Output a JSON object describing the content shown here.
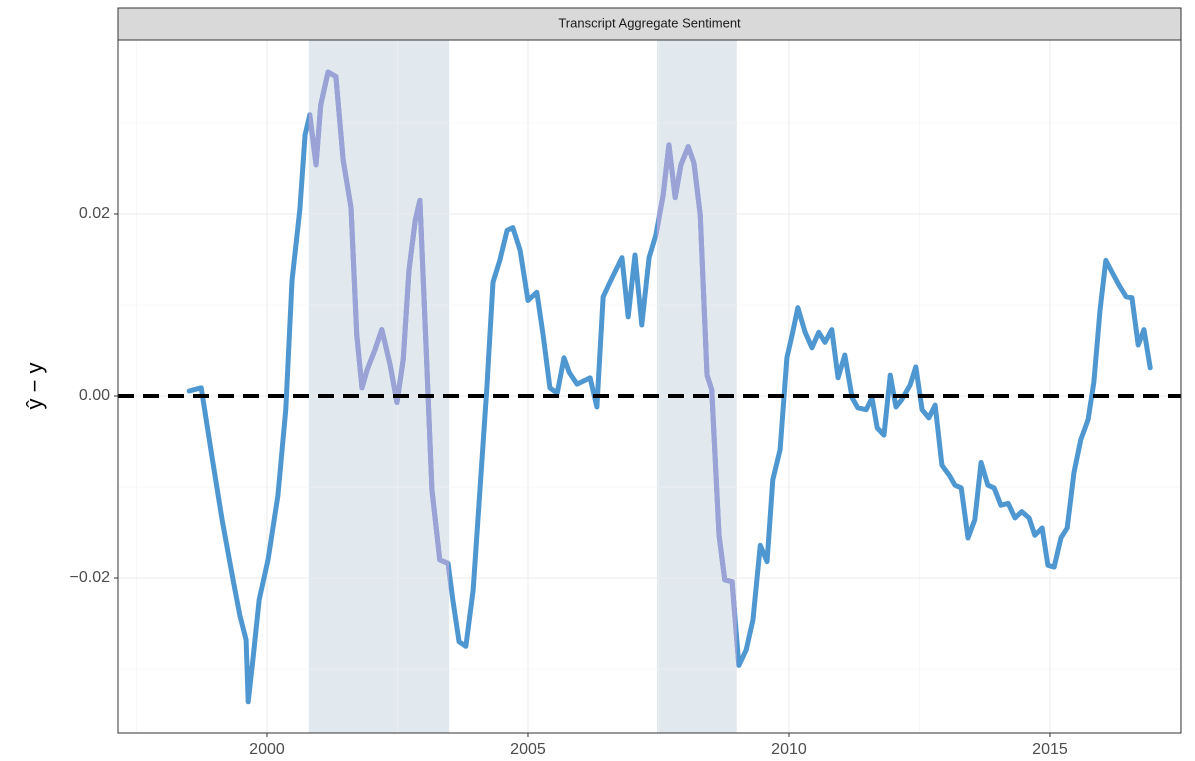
{
  "chart_data": {
    "type": "line",
    "title": "Transcript Aggregate Sentiment",
    "ylabel": "ŷ − y",
    "color": "#4f97d1",
    "shade_line_color": "#9ba3d6",
    "shade_color": "#e1e9ef",
    "shades": [
      [
        2000.8,
        2003.49
      ],
      [
        2007.47,
        2009.0
      ]
    ],
    "hline": 0,
    "grid": true,
    "xlim": [
      1997.146,
      2017.51
    ],
    "ylim": [
      -0.03703,
      0.03912
    ],
    "xticks": [
      2000,
      2005,
      2010,
      2015
    ],
    "yticks": [
      {
        "value": -0.02,
        "label": "−0.02"
      },
      {
        "value": 0,
        "label": "0.00"
      },
      {
        "value": 0.02,
        "label": "0.02"
      }
    ],
    "x": [
      1998.51,
      1998.74,
      1998.95,
      1999.14,
      1999.35,
      1999.48,
      1999.6,
      1999.64,
      1999.73,
      1999.85,
      2000.02,
      2000.21,
      2000.36,
      2000.48,
      2000.63,
      2000.73,
      2000.82,
      2000.94,
      2001.03,
      2001.17,
      2001.32,
      2001.46,
      2001.61,
      2001.72,
      2001.82,
      2001.92,
      2002.07,
      2002.2,
      2002.36,
      2002.49,
      2002.61,
      2002.72,
      2002.84,
      2002.93,
      2003.05,
      2003.16,
      2003.31,
      2003.47,
      2003.56,
      2003.68,
      2003.81,
      2003.95,
      2004.08,
      2004.21,
      2004.33,
      2004.46,
      2004.6,
      2004.71,
      2004.85,
      2005.0,
      2005.17,
      2005.29,
      2005.42,
      2005.56,
      2005.69,
      2005.79,
      2005.94,
      2006.19,
      2006.32,
      2006.44,
      2006.57,
      2006.8,
      2006.92,
      2007.05,
      2007.18,
      2007.32,
      2007.45,
      2007.59,
      2007.7,
      2007.82,
      2007.93,
      2008.07,
      2008.18,
      2008.3,
      2008.43,
      2008.52,
      2008.66,
      2008.77,
      2008.91,
      2009.04,
      2009.18,
      2009.31,
      2009.45,
      2009.58,
      2009.69,
      2009.83,
      2009.96,
      2010.06,
      2010.17,
      2010.31,
      2010.44,
      2010.57,
      2010.69,
      2010.82,
      2010.94,
      2011.07,
      2011.21,
      2011.32,
      2011.48,
      2011.59,
      2011.69,
      2011.82,
      2011.94,
      2012.05,
      2012.16,
      2012.32,
      2012.43,
      2012.55,
      2012.68,
      2012.8,
      2012.93,
      2013.07,
      2013.18,
      2013.3,
      2013.43,
      2013.56,
      2013.68,
      2013.81,
      2013.93,
      2014.06,
      2014.2,
      2014.33,
      2014.46,
      2014.6,
      2014.71,
      2014.85,
      2014.96,
      2015.08,
      2015.21,
      2015.33,
      2015.46,
      2015.59,
      2015.73,
      2015.84,
      2015.96,
      2016.07,
      2016.19,
      2016.32,
      2016.46,
      2016.57,
      2016.69,
      2016.8,
      2016.92
    ],
    "values": [
      0.00055,
      0.0009,
      -0.0068,
      -0.0136,
      -0.0202,
      -0.0241,
      -0.0268,
      -0.0336,
      -0.029,
      -0.0224,
      -0.018,
      -0.0109,
      -0.0015,
      0.0127,
      0.0205,
      0.0287,
      0.0309,
      0.0254,
      0.032,
      0.0356,
      0.0351,
      0.0259,
      0.0207,
      0.0067,
      0.0009,
      0.0029,
      0.0051,
      0.0073,
      0.0034,
      -0.0007,
      0.004,
      0.0138,
      0.0193,
      0.0215,
      0.0051,
      -0.0103,
      -0.018,
      -0.0184,
      -0.0224,
      -0.027,
      -0.0275,
      -0.0213,
      -0.0103,
      0.0007,
      0.0125,
      0.0149,
      0.0182,
      0.0185,
      0.016,
      0.0105,
      0.0114,
      0.0067,
      0.0009,
      0.0003,
      0.0042,
      0.0026,
      0.0013,
      0.002,
      -0.0012,
      0.0109,
      0.0125,
      0.0152,
      0.0087,
      0.0155,
      0.0078,
      0.0152,
      0.0177,
      0.0221,
      0.0276,
      0.0218,
      0.0254,
      0.0274,
      0.0256,
      0.0199,
      0.0023,
      0.0007,
      -0.0153,
      -0.0202,
      -0.0204,
      -0.0296,
      -0.0279,
      -0.0246,
      -0.0164,
      -0.0182,
      -0.0092,
      -0.0059,
      0.0042,
      0.0067,
      0.0097,
      0.007,
      0.0053,
      0.007,
      0.0059,
      0.0073,
      0.002,
      0.0045,
      -0.0002,
      -0.0013,
      -0.0015,
      -0.0002,
      -0.0035,
      -0.0043,
      0.0023,
      -0.0012,
      -0.0004,
      0.0012,
      0.0032,
      -0.0015,
      -0.0024,
      -0.001,
      -0.0076,
      -0.0087,
      -0.0098,
      -0.0101,
      -0.0156,
      -0.0136,
      -0.0073,
      -0.0098,
      -0.0101,
      -0.012,
      -0.0118,
      -0.0134,
      -0.0127,
      -0.0134,
      -0.0153,
      -0.0145,
      -0.0186,
      -0.0188,
      -0.0156,
      -0.0145,
      -0.0084,
      -0.0048,
      -0.0026,
      0.0015,
      0.0095,
      0.0149,
      0.0136,
      0.0122,
      0.0109,
      0.0108,
      0.0056,
      0.0073,
      0.0031
    ]
  }
}
